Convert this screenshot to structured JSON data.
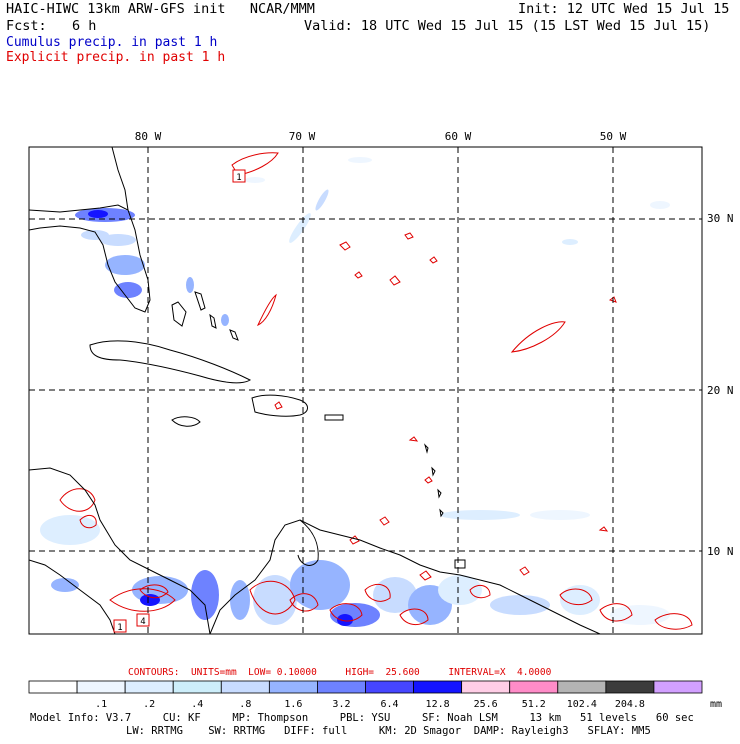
{
  "header": {
    "model_line": "HAIC-HIWC 13km ARW-GFS init   NCAR/MMM",
    "init_line": "Init: 12 UTC Wed 15 Jul 15",
    "fcst_label": "Fcst:",
    "fcst_value": "6 h",
    "valid_line": "Valid: 18 UTC Wed 15 Jul 15 (15 LST Wed 15 Jul 15)",
    "cumulus_label": "Cumulus precip. in past 1 h",
    "explicit_label": "Explicit precip. in past 1 h"
  },
  "map": {
    "lon_labels": [
      "80 W",
      "70 W",
      "60 W",
      "50 W"
    ],
    "lat_labels": [
      "30 N",
      "20 N",
      "10 N"
    ],
    "box_labels": [
      "1",
      "1",
      "4"
    ],
    "colors": {
      "cumulus": "#3a5cff",
      "explicit": "#e00000",
      "coast": "#000000",
      "grid": "#000000"
    }
  },
  "contours": {
    "label": "CONTOURS:",
    "units": "UNITS=mm",
    "low": "LOW= 0.10000",
    "high": "HIGH=  25.600",
    "interval": "INTERVAL=X  4.0000"
  },
  "colorbar": {
    "ticks": [
      ".1",
      ".2",
      ".4",
      ".8",
      "1.6",
      "3.2",
      "6.4",
      "12.8",
      "25.6",
      "51.2",
      "102.4",
      "204.8"
    ],
    "unit": "mm",
    "colors": [
      "#ffffff",
      "#eef6ff",
      "#ddeeff",
      "#cdeefa",
      "#c8dcff",
      "#96b4ff",
      "#6e82ff",
      "#4646ff",
      "#1414ff",
      "#ffcee6",
      "#ff8cc8",
      "#b4b4b4",
      "#3c3c3c",
      "#d2a0ff"
    ]
  },
  "footer": {
    "line1": [
      "Model Info: V3.7",
      "CU: KF",
      "MP: Thompson",
      "PBL: YSU",
      "SF: Noah LSM",
      "13 km",
      "51 levels",
      "60 sec"
    ],
    "line2": [
      "LW: RRTMG",
      "SW: RRTMG",
      "DIFF: full",
      "KM: 2D Smagor",
      "DAMP: Rayleigh3",
      "SFLAY: MM5"
    ]
  }
}
